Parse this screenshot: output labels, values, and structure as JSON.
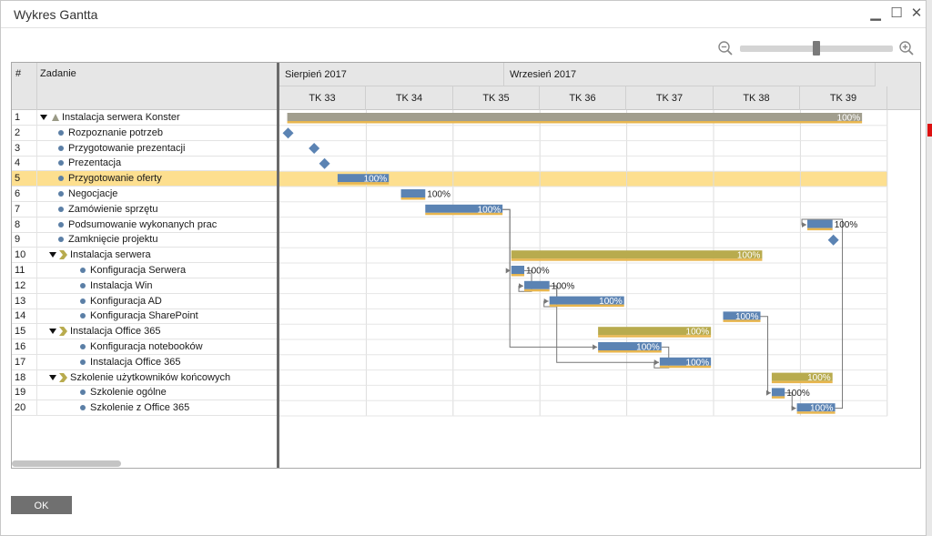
{
  "window": {
    "title": "Wykres Gantta"
  },
  "columns": {
    "number": "#",
    "task": "Zadanie"
  },
  "timeline": {
    "months": [
      "Sierpień 2017",
      "Wrzesień 2017"
    ],
    "weeks": [
      "TK 33",
      "TK 34",
      "TK 35",
      "TK 36",
      "TK 37",
      "TK 38",
      "TK 39"
    ]
  },
  "colors": {
    "summary_root": "#a19e8e",
    "summary_group": "#b8ab4e",
    "task": "#5b83b3",
    "task_underline": "#e8b64f",
    "milestone": "#5b83b3",
    "selection": "#fddf8f",
    "link": "#777777"
  },
  "rows": [
    {
      "num": "1",
      "label": "Instalacja serwera Konster",
      "level": 0,
      "kind": "root"
    },
    {
      "num": "2",
      "label": "Rozpoznanie potrzeb",
      "level": 1,
      "kind": "milestone"
    },
    {
      "num": "3",
      "label": "Przygotowanie prezentacji",
      "level": 1,
      "kind": "milestone"
    },
    {
      "num": "4",
      "label": "Prezentacja",
      "level": 1,
      "kind": "milestone"
    },
    {
      "num": "5",
      "label": "Przygotowanie oferty",
      "level": 1,
      "kind": "task",
      "selected": true
    },
    {
      "num": "6",
      "label": "Negocjacje",
      "level": 1,
      "kind": "task"
    },
    {
      "num": "7",
      "label": "Zamówienie sprzętu",
      "level": 1,
      "kind": "task"
    },
    {
      "num": "8",
      "label": "Podsumowanie wykonanych prac",
      "level": 1,
      "kind": "task"
    },
    {
      "num": "9",
      "label": "Zamknięcie projektu",
      "level": 1,
      "kind": "milestone"
    },
    {
      "num": "10",
      "label": "Instalacja serwera",
      "level": 1,
      "kind": "group"
    },
    {
      "num": "11",
      "label": "Konfiguracja Serwera",
      "level": 2,
      "kind": "task"
    },
    {
      "num": "12",
      "label": "Instalacja Win",
      "level": 2,
      "kind": "task"
    },
    {
      "num": "13",
      "label": "Konfiguracja AD",
      "level": 2,
      "kind": "task"
    },
    {
      "num": "14",
      "label": "Konfiguracja SharePoint",
      "level": 2,
      "kind": "task"
    },
    {
      "num": "15",
      "label": "Instalacja Office 365",
      "level": 1,
      "kind": "group"
    },
    {
      "num": "16",
      "label": "Konfiguracja notebooków",
      "level": 2,
      "kind": "task"
    },
    {
      "num": "17",
      "label": "Instalacja Office 365",
      "level": 2,
      "kind": "task"
    },
    {
      "num": "18",
      "label": "Szkolenie użytkowników końcowych",
      "level": 1,
      "kind": "group"
    },
    {
      "num": "19",
      "label": "Szkolenie ogólne",
      "level": 2,
      "kind": "task"
    },
    {
      "num": "20",
      "label": "Szkolenie z Office 365",
      "level": 2,
      "kind": "task"
    }
  ],
  "bars": [
    {
      "row": 0,
      "type": "root",
      "start": 0.09,
      "end": 6.71,
      "label": "100%",
      "label_pos": "inside"
    },
    {
      "row": 1,
      "type": "milestone",
      "at": 0.1
    },
    {
      "row": 2,
      "type": "milestone",
      "at": 0.4
    },
    {
      "row": 3,
      "type": "milestone",
      "at": 0.52
    },
    {
      "row": 4,
      "type": "task",
      "start": 0.67,
      "end": 1.26,
      "label": "100%",
      "label_pos": "inside"
    },
    {
      "row": 5,
      "type": "task",
      "start": 1.4,
      "end": 1.68,
      "label": "100%",
      "label_pos": "outside"
    },
    {
      "row": 6,
      "type": "task",
      "start": 1.68,
      "end": 2.57,
      "label": "100%",
      "label_pos": "inside"
    },
    {
      "row": 7,
      "type": "task",
      "start": 6.08,
      "end": 6.37,
      "label": "100%",
      "label_pos": "outside"
    },
    {
      "row": 8,
      "type": "milestone",
      "at": 6.38
    },
    {
      "row": 9,
      "type": "group",
      "start": 2.67,
      "end": 5.56,
      "label": "100%",
      "label_pos": "inside"
    },
    {
      "row": 10,
      "type": "task",
      "start": 2.67,
      "end": 2.82,
      "label": "100%",
      "label_pos": "outside"
    },
    {
      "row": 11,
      "type": "task",
      "start": 2.82,
      "end": 3.11,
      "label": "100%",
      "label_pos": "outside"
    },
    {
      "row": 12,
      "type": "task",
      "start": 3.11,
      "end": 3.97,
      "label": "100%",
      "label_pos": "inside"
    },
    {
      "row": 13,
      "type": "task",
      "start": 5.11,
      "end": 5.54,
      "label": "100%",
      "label_pos": "inside"
    },
    {
      "row": 14,
      "type": "group",
      "start": 3.67,
      "end": 4.97,
      "label": "100%",
      "label_pos": "inside"
    },
    {
      "row": 15,
      "type": "task",
      "start": 3.67,
      "end": 4.4,
      "label": "100%",
      "label_pos": "inside"
    },
    {
      "row": 16,
      "type": "task",
      "start": 4.38,
      "end": 4.97,
      "label": "100%",
      "label_pos": "inside"
    },
    {
      "row": 17,
      "type": "group",
      "start": 5.67,
      "end": 6.37,
      "label": "100%",
      "label_pos": "inside"
    },
    {
      "row": 18,
      "type": "task",
      "start": 5.67,
      "end": 5.82,
      "label": "100%",
      "label_pos": "outside"
    },
    {
      "row": 19,
      "type": "task",
      "start": 5.96,
      "end": 6.4,
      "label": "100%",
      "label_pos": "inside"
    }
  ],
  "links": [
    {
      "from": 6,
      "to": 10
    },
    {
      "from": 6,
      "to": 15
    },
    {
      "from": 10,
      "to": 11
    },
    {
      "from": 11,
      "to": 12
    },
    {
      "from": 11,
      "to": 16
    },
    {
      "from": 13,
      "to": 18
    },
    {
      "from": 15,
      "to": 16
    },
    {
      "from": 18,
      "to": 19
    },
    {
      "from": 19,
      "to": 7
    }
  ],
  "footer": {
    "ok_label": "OK"
  }
}
